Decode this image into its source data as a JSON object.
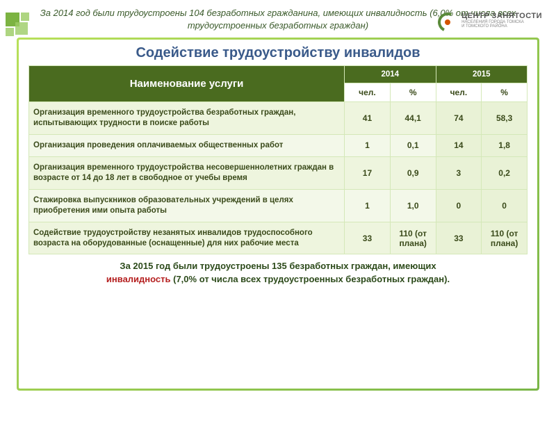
{
  "logo": {
    "line1": "ЦЕНТР ЗАНЯТОСТИ",
    "line2": "НАСЕЛЕНИЯ ГОРОДА ТОМСКА",
    "line3": "И ТОМСКОГО РАЙОНА"
  },
  "title": "Содействие трудоустройству инвалидов",
  "table": {
    "headers": {
      "service": "Наименование услуги",
      "year1": "2014",
      "year2": "2015",
      "sub_people": "чел.",
      "sub_percent": "%"
    },
    "header_bg": "#4a6b1f",
    "header_color": "#ffffff",
    "row_bg": "#eef5de",
    "row_bg_alt": "#f3f8e9",
    "border_color": "#d4e8b8",
    "rows": [
      {
        "service": "Организация временного трудоустройства безработных граждан, испытывающих трудности в поиске работы",
        "y14_people": "41",
        "y14_pct": "44,1",
        "y15_people": "74",
        "y15_pct": "58,3"
      },
      {
        "service": "Организация проведения оплачиваемых общественных работ",
        "y14_people": "1",
        "y14_pct": "0,1",
        "y15_people": "14",
        "y15_pct": "1,8"
      },
      {
        "service": "Организация временного трудоустройства несовершеннолетних граждан в возрасте от 14 до 18 лет в свободное от учебы время",
        "y14_people": "17",
        "y14_pct": "0,9",
        "y15_people": "3",
        "y15_pct": "0,2"
      },
      {
        "service": "Стажировка выпускников образовательных учреждений в целях приобретения ими опыта работы",
        "y14_people": "1",
        "y14_pct": "1,0",
        "y15_people": "0",
        "y15_pct": "0"
      },
      {
        "service": "Содействие трудоустройству незанятых инвалидов трудоспособного возраста на оборудованные (оснащенные) для них рабочие места",
        "y14_people": "33",
        "y14_pct": "110 (от плана)",
        "y15_people": "33",
        "y15_pct": "110 (от плана)"
      }
    ]
  },
  "summary": {
    "part1": "За 2015 год были трудоустроены 135 безработных граждан, имеющих",
    "highlight": "инвалидность",
    "part2": " (7,0% от числа всех трудоустроенных безработных граждан)."
  },
  "footnote": "За 2014 год были трудоустроены 104 безработных гражданина, имеющих инвалидность (6,0% от числа всех трудоустроенных безработных граждан)",
  "colors": {
    "title": "#3a5a8a",
    "frame_grad_start": "#b8e05a",
    "frame_grad_end": "#7ab648",
    "summary_text": "#2c4a1a",
    "highlight": "#b52020",
    "footnote": "#3a5a2a"
  },
  "fonts": {
    "title_size": 20,
    "table_body_size": 11.5,
    "summary_size": 13,
    "footnote_size": 13
  }
}
